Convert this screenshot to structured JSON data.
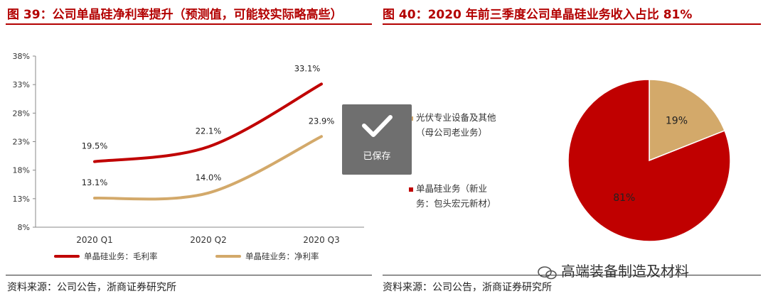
{
  "left": {
    "title": "图 39：公司单晶硅净利率提升（预测值，可能较实际略高些）",
    "source": "资料来源：公司公告，浙商证券研究所"
  },
  "right": {
    "title": "图 40：2020 年前三季度公司单晶硅业务收入占比 81%",
    "source": "资料来源：公司公告，浙商证券研究所"
  },
  "saved_toast": {
    "label": "已保存"
  },
  "watermark": "高端装备制造及材料",
  "chart_data": [
    {
      "type": "line",
      "categories": [
        "2020 Q1",
        "2020 Q2",
        "2020 Q3"
      ],
      "ylim": [
        8,
        38
      ],
      "yticks": [
        "8%",
        "13%",
        "18%",
        "23%",
        "28%",
        "33%",
        "38%"
      ],
      "ytick_values": [
        8,
        13,
        18,
        23,
        28,
        33,
        38
      ],
      "grid": false,
      "legend_position": "bottom",
      "series": [
        {
          "name": "单晶硅业务：毛利率",
          "values": [
            19.5,
            22.1,
            33.1
          ],
          "labels": [
            "19.5%",
            "22.1%",
            "33.1%"
          ],
          "color": "#c00000"
        },
        {
          "name": "单晶硅业务：净利率",
          "values": [
            13.1,
            14.0,
            23.9
          ],
          "labels": [
            "13.1%",
            "14.0%",
            "23.9%"
          ],
          "color": "#d3a96a"
        }
      ]
    },
    {
      "type": "pie",
      "slices": [
        {
          "name": "光伏专业设备及其他（母公司老业务）",
          "legend_lines": [
            "光伏专业设备及其他",
            "（母公司老业务）"
          ],
          "value": 19,
          "label": "19%",
          "color": "#d3a96a"
        },
        {
          "name": "单晶硅业务（新业务：包头宏元新材）",
          "legend_lines": [
            "单晶硅业务（新业",
            "务：包头宏元新材）"
          ],
          "value": 81,
          "label": "81%",
          "color": "#c00000"
        }
      ],
      "legend_position": "left"
    }
  ]
}
